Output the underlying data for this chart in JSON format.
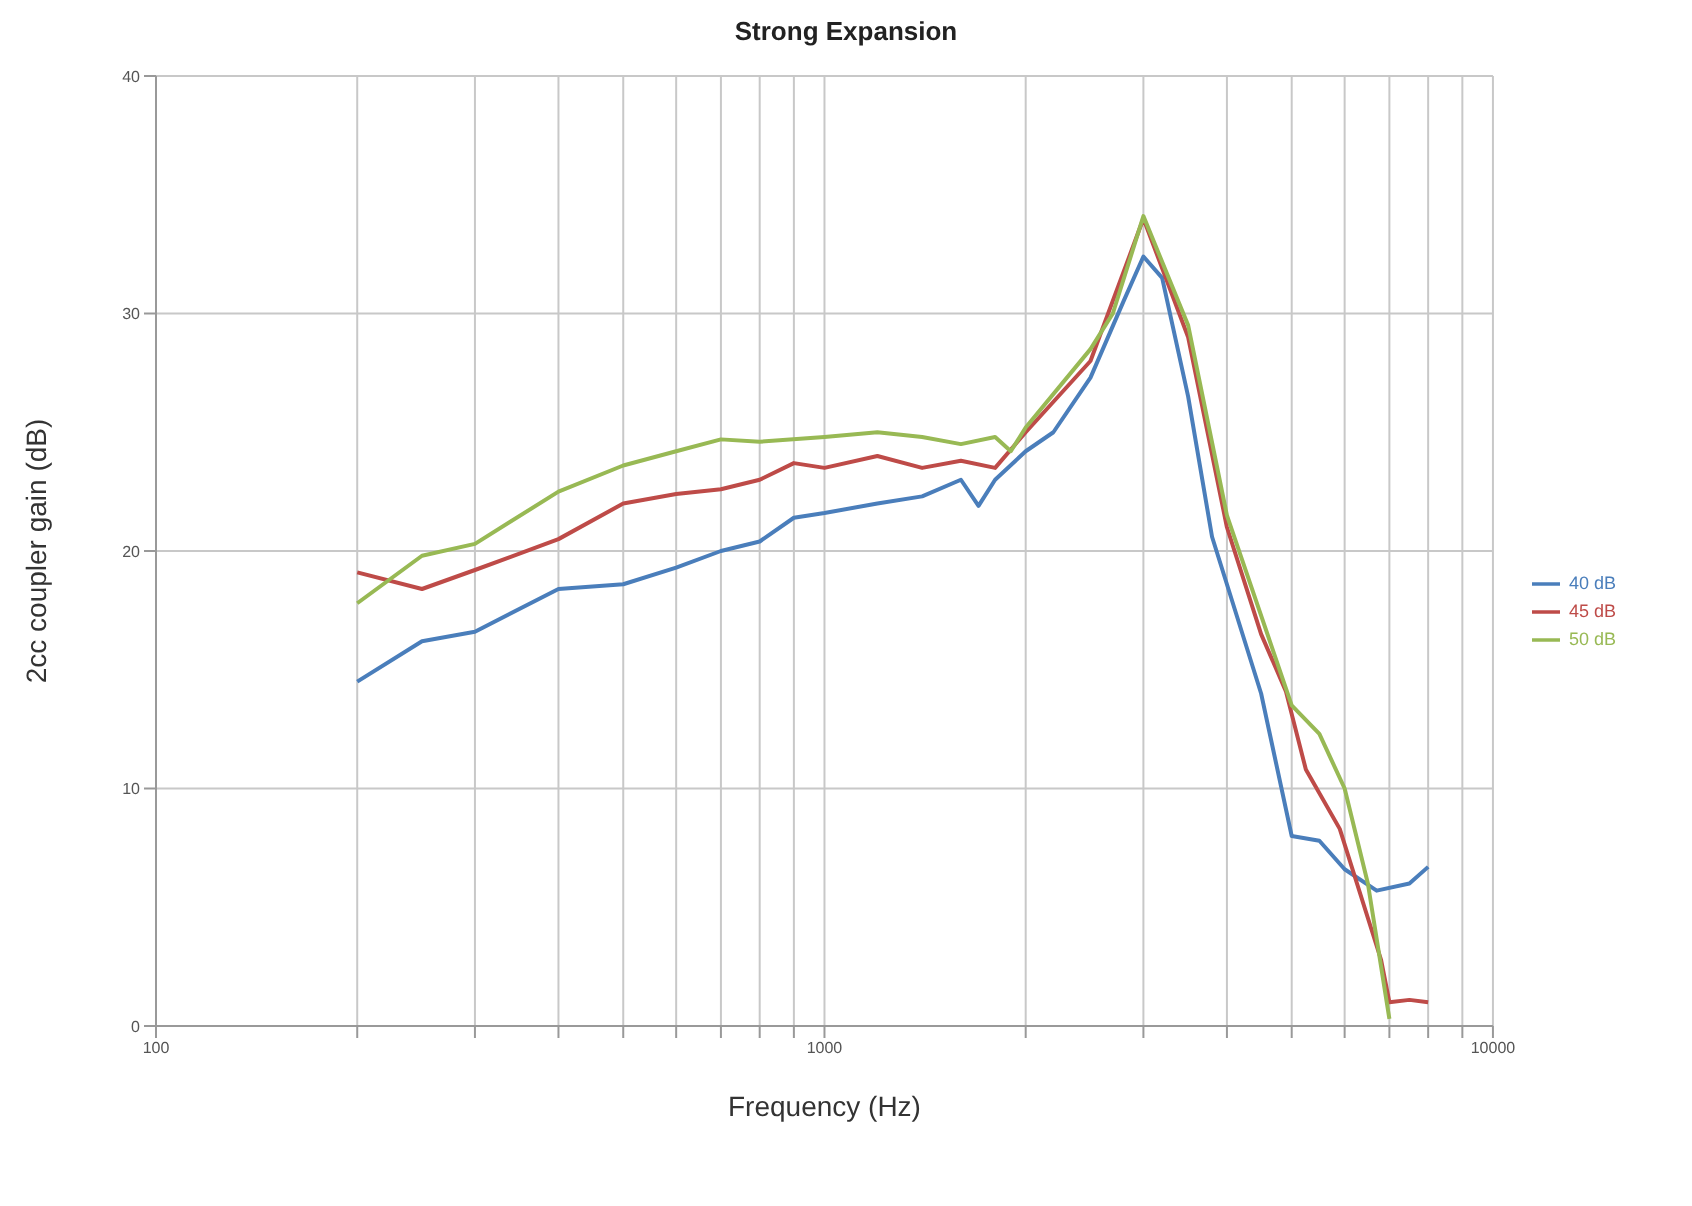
{
  "chart_data": {
    "type": "line",
    "title": "Strong Expansion",
    "xlabel": "Frequency (Hz)",
    "ylabel": "2cc coupler gain (dB)",
    "log": "x",
    "xlim": [
      100,
      10000
    ],
    "xticks": [
      100,
      {
        "value": 200,
        "label": null
      },
      {
        "value": 300,
        "label": null
      },
      {
        "value": 400,
        "label": null
      },
      {
        "value": 500,
        "label": null
      },
      {
        "value": 600,
        "label": null
      },
      {
        "value": 700,
        "label": null
      },
      {
        "value": 800,
        "label": null
      },
      {
        "value": 900,
        "label": null
      },
      1000,
      {
        "value": 2000,
        "label": null
      },
      {
        "value": 3000,
        "label": null
      },
      {
        "value": 4000,
        "label": null
      },
      {
        "value": 5000,
        "label": null
      },
      {
        "value": 6000,
        "label": null
      },
      {
        "value": 7000,
        "label": null
      },
      {
        "value": 8000,
        "label": null
      },
      {
        "value": 9000,
        "label": null
      },
      10000
    ],
    "ylim": [
      0,
      40
    ],
    "yticks": [
      0,
      10,
      20,
      30,
      40
    ],
    "grid": true,
    "legend": "right",
    "marker": "none",
    "line_style": "solid",
    "series": [
      {
        "name": "40 dB",
        "color": "#4a7ebb",
        "x": [
          200,
          250,
          300,
          400,
          500,
          600,
          700,
          800,
          900,
          1000,
          1200,
          1400,
          1600,
          1700,
          1800,
          2000,
          2200,
          2500,
          2800,
          3000,
          3200,
          3500,
          3800,
          4500,
          5000,
          5500,
          6000,
          6700,
          7500,
          8000
        ],
        "values": [
          14.5,
          16.2,
          16.6,
          18.4,
          18.6,
          19.3,
          20.0,
          20.4,
          21.4,
          21.6,
          22.0,
          22.3,
          23.0,
          21.9,
          23.0,
          24.2,
          25.0,
          27.3,
          30.5,
          32.4,
          31.5,
          26.5,
          20.6,
          14,
          8,
          7.8,
          6.6,
          5.7,
          6.0,
          6.7
        ]
      },
      {
        "name": "45 dB",
        "color": "#be4b48",
        "x": [
          200,
          250,
          300,
          400,
          500,
          600,
          700,
          800,
          900,
          1000,
          1200,
          1400,
          1600,
          1800,
          2000,
          2500,
          3000,
          3500,
          4000,
          4500,
          4900,
          5250,
          5900,
          6800,
          7000,
          7500,
          8000
        ],
        "values": [
          19.1,
          18.4,
          19.2,
          20.5,
          22.0,
          22.4,
          22.6,
          23.0,
          23.7,
          23.5,
          24.0,
          23.5,
          23.8,
          23.5,
          25.0,
          28.0,
          34.0,
          29.0,
          21.0,
          16.5,
          14.1,
          10.8,
          8.3,
          2.8,
          1.0,
          1.1,
          1.0
        ]
      },
      {
        "name": "50 dB",
        "color": "#98b954",
        "x": [
          200,
          250,
          300,
          400,
          500,
          600,
          700,
          800,
          1000,
          1200,
          1400,
          1600,
          1800,
          1900,
          2000,
          2500,
          2700,
          3000,
          3500,
          4000,
          5000,
          5500,
          6000,
          6500,
          7000
        ],
        "values": [
          17.8,
          19.8,
          20.3,
          22.5,
          23.6,
          24.2,
          24.7,
          24.6,
          24.8,
          25.0,
          24.8,
          24.5,
          24.8,
          24.2,
          25.2,
          28.5,
          30.0,
          34.1,
          29.5,
          21.5,
          13.5,
          12.3,
          10.0,
          6.0,
          0.3
        ]
      }
    ]
  }
}
